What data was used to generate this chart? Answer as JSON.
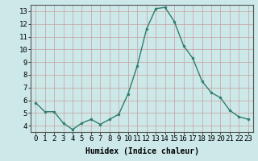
{
  "x": [
    0,
    1,
    2,
    3,
    4,
    5,
    6,
    7,
    8,
    9,
    10,
    11,
    12,
    13,
    14,
    15,
    16,
    17,
    18,
    19,
    20,
    21,
    22,
    23
  ],
  "y": [
    5.8,
    5.1,
    5.1,
    4.2,
    3.7,
    4.2,
    4.5,
    4.1,
    4.5,
    4.9,
    6.5,
    8.7,
    11.6,
    13.2,
    13.3,
    12.2,
    10.3,
    9.3,
    7.5,
    6.6,
    6.2,
    5.2,
    4.7,
    4.5
  ],
  "line_color": "#2e7d6e",
  "marker": "o",
  "marker_size": 2.0,
  "linewidth": 1.0,
  "xlabel": "Humidex (Indice chaleur)",
  "xlim": [
    -0.5,
    23.5
  ],
  "ylim": [
    3.5,
    13.5
  ],
  "yticks": [
    4,
    5,
    6,
    7,
    8,
    9,
    10,
    11,
    12,
    13
  ],
  "xticks": [
    0,
    1,
    2,
    3,
    4,
    5,
    6,
    7,
    8,
    9,
    10,
    11,
    12,
    13,
    14,
    15,
    16,
    17,
    18,
    19,
    20,
    21,
    22,
    23
  ],
  "bg_color": "#cce8e8",
  "grid_color": "#c8a0a0",
  "xlabel_fontsize": 7,
  "tick_fontsize": 6.5
}
